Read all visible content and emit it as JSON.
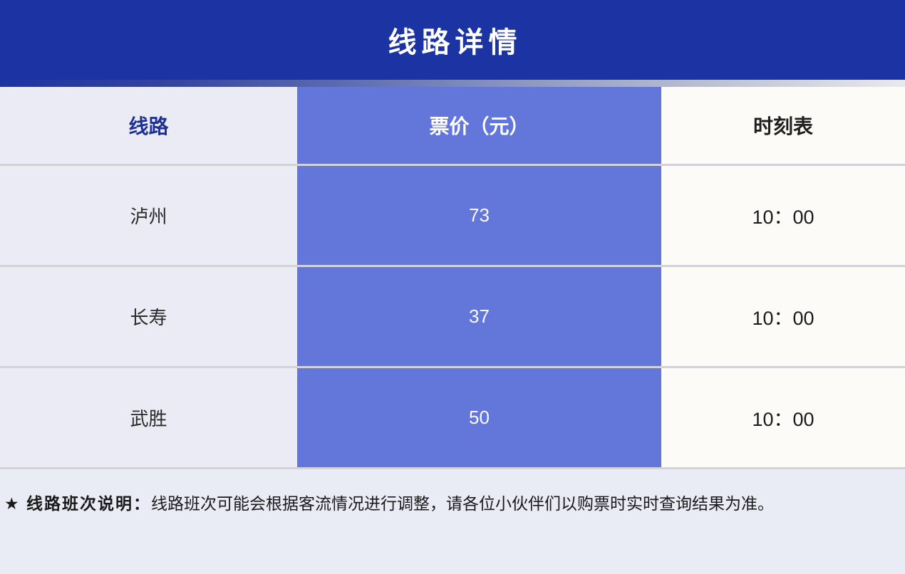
{
  "banner": {
    "title": "线路详情"
  },
  "table": {
    "columns": [
      {
        "label": "线路"
      },
      {
        "label": "票价（元）"
      },
      {
        "label": "时刻表"
      }
    ],
    "rows": [
      {
        "route": "泸州",
        "price": "73",
        "time": "10：00"
      },
      {
        "route": "长寿",
        "price": "37",
        "time": "10：00"
      },
      {
        "route": "武胜",
        "price": "50",
        "time": "10：00"
      }
    ]
  },
  "footer": {
    "label": "★ 线路班次说明：",
    "note": "线路班次可能会根据客流情况进行调整，请各位小伙伴们以购票时实时查询结果为准。"
  },
  "colors": {
    "banner_blue": "#1c33a3",
    "price_column_purple": "#6376da",
    "route_column_lavender": "#eaebf5",
    "schedule_column_white": "#fcfbf8",
    "separator_gray": "#d2d2d7",
    "footer_background": "#e9ebf5",
    "route_header_navy": "#1e3193"
  }
}
